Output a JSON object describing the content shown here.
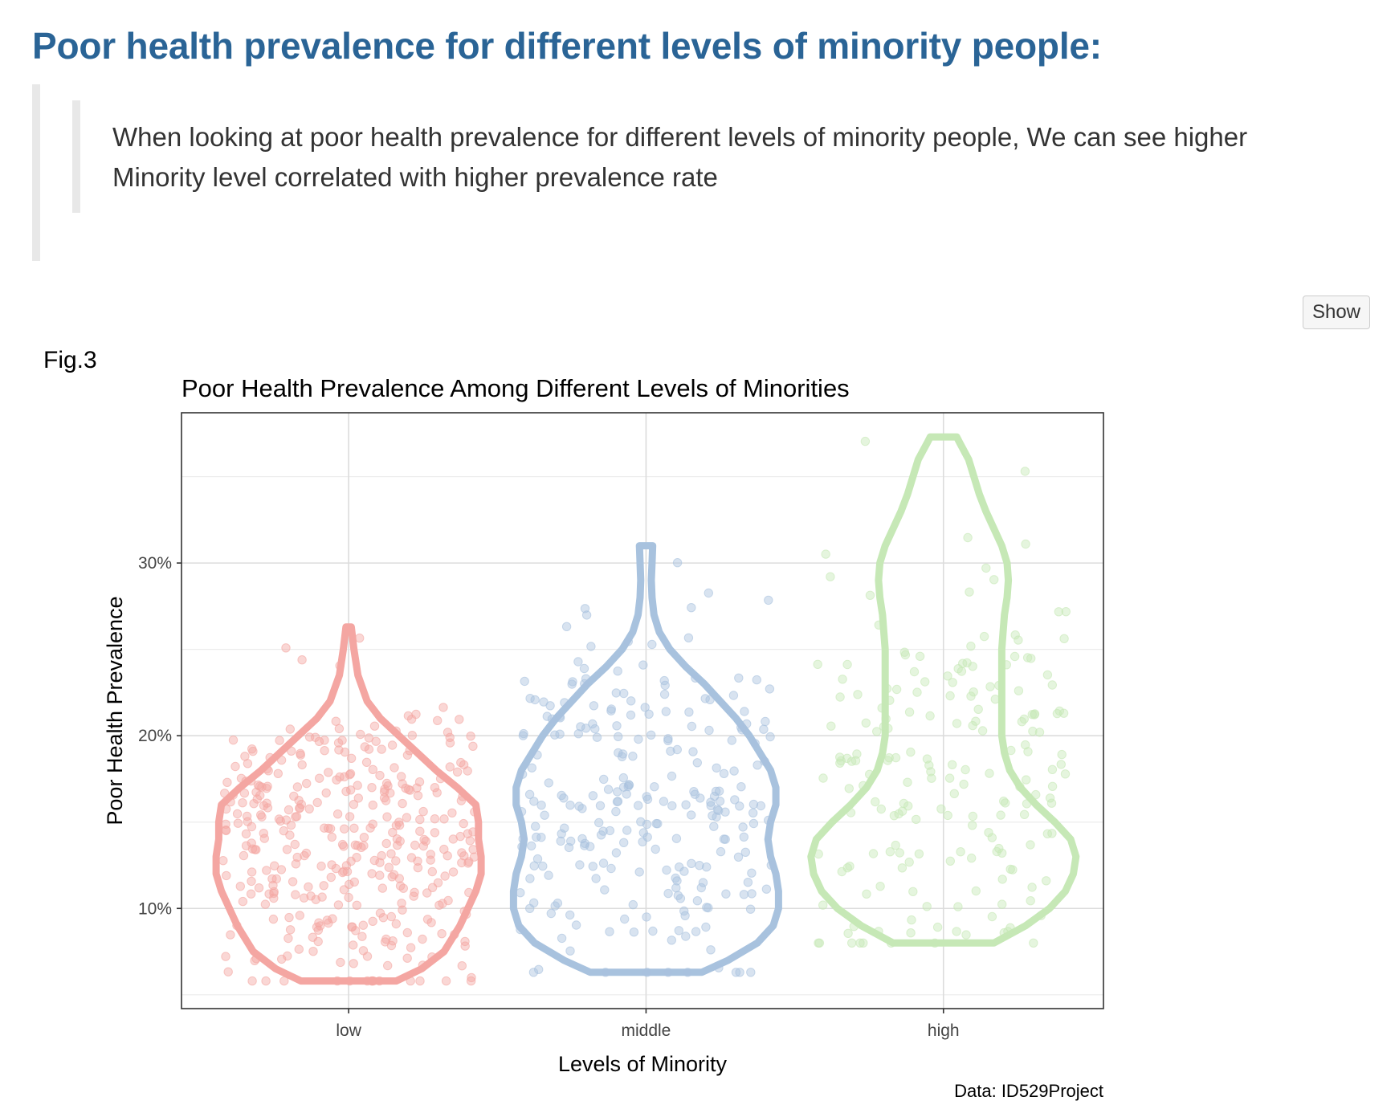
{
  "page": {
    "title": "Poor health prevalence for different levels of minority people:",
    "quote": "When looking at poor health prevalence for different levels of minority people, We can see higher Minority level correlated with higher prevalence rate",
    "show_button": "Show",
    "fig_label": "Fig.3"
  },
  "chart_data": {
    "type": "violin",
    "title": "Poor Health Prevalence Among Different Levels of Minorities",
    "xlabel": "Levels of Minority",
    "ylabel": "Poor Health Prevalence",
    "caption": "Data: ID529Project",
    "categories": [
      "low",
      "middle",
      "high"
    ],
    "y_ticks": [
      0.1,
      0.2,
      0.3
    ],
    "y_tick_labels": [
      "10%",
      "20%",
      "30%"
    ],
    "ylim": [
      0.042,
      0.387
    ],
    "grid": true,
    "legend": "none",
    "colors": {
      "low": "#f4a6a2",
      "middle": "#a8c2de",
      "high": "#c6e8b6"
    },
    "violins": [
      {
        "category": "low",
        "y_min": 0.058,
        "y_max": 0.263,
        "profile": [
          [
            0.058,
            0.36
          ],
          [
            0.065,
            0.55
          ],
          [
            0.075,
            0.72
          ],
          [
            0.09,
            0.84
          ],
          [
            0.1,
            0.9
          ],
          [
            0.11,
            0.96
          ],
          [
            0.12,
            1.0
          ],
          [
            0.13,
            1.0
          ],
          [
            0.14,
            0.98
          ],
          [
            0.15,
            0.98
          ],
          [
            0.16,
            0.96
          ],
          [
            0.17,
            0.82
          ],
          [
            0.18,
            0.66
          ],
          [
            0.19,
            0.52
          ],
          [
            0.2,
            0.38
          ],
          [
            0.21,
            0.24
          ],
          [
            0.22,
            0.14
          ],
          [
            0.235,
            0.07
          ],
          [
            0.25,
            0.04
          ],
          [
            0.263,
            0.02
          ]
        ],
        "points": [
          {
            "n": 370,
            "y_center": 0.14,
            "y_sd": 0.042
          }
        ]
      },
      {
        "category": "middle",
        "y_min": 0.063,
        "y_max": 0.31,
        "profile": [
          [
            0.063,
            0.42
          ],
          [
            0.07,
            0.62
          ],
          [
            0.08,
            0.84
          ],
          [
            0.09,
            0.96
          ],
          [
            0.1,
            1.0
          ],
          [
            0.11,
            1.0
          ],
          [
            0.12,
            0.98
          ],
          [
            0.13,
            0.94
          ],
          [
            0.14,
            0.92
          ],
          [
            0.15,
            0.94
          ],
          [
            0.16,
            0.98
          ],
          [
            0.17,
            0.98
          ],
          [
            0.18,
            0.94
          ],
          [
            0.19,
            0.86
          ],
          [
            0.2,
            0.78
          ],
          [
            0.21,
            0.68
          ],
          [
            0.22,
            0.56
          ],
          [
            0.23,
            0.44
          ],
          [
            0.24,
            0.3
          ],
          [
            0.25,
            0.18
          ],
          [
            0.26,
            0.1
          ],
          [
            0.27,
            0.06
          ],
          [
            0.28,
            0.045
          ],
          [
            0.29,
            0.04
          ],
          [
            0.3,
            0.045
          ],
          [
            0.31,
            0.05
          ]
        ],
        "points": [
          {
            "n": 260,
            "y_center": 0.16,
            "y_sd": 0.052
          }
        ]
      },
      {
        "category": "high",
        "y_min": 0.08,
        "y_max": 0.373,
        "profile": [
          [
            0.08,
            0.38
          ],
          [
            0.09,
            0.62
          ],
          [
            0.1,
            0.8
          ],
          [
            0.11,
            0.92
          ],
          [
            0.12,
            0.98
          ],
          [
            0.13,
            1.0
          ],
          [
            0.14,
            0.96
          ],
          [
            0.15,
            0.84
          ],
          [
            0.16,
            0.7
          ],
          [
            0.17,
            0.58
          ],
          [
            0.18,
            0.5
          ],
          [
            0.19,
            0.46
          ],
          [
            0.2,
            0.44
          ],
          [
            0.21,
            0.44
          ],
          [
            0.22,
            0.44
          ],
          [
            0.23,
            0.44
          ],
          [
            0.24,
            0.44
          ],
          [
            0.25,
            0.44
          ],
          [
            0.26,
            0.45
          ],
          [
            0.27,
            0.46
          ],
          [
            0.28,
            0.48
          ],
          [
            0.29,
            0.49
          ],
          [
            0.3,
            0.48
          ],
          [
            0.31,
            0.44
          ],
          [
            0.32,
            0.38
          ],
          [
            0.33,
            0.32
          ],
          [
            0.34,
            0.27
          ],
          [
            0.35,
            0.23
          ],
          [
            0.36,
            0.19
          ],
          [
            0.37,
            0.12
          ],
          [
            0.373,
            0.1
          ]
        ],
        "points": [
          {
            "n": 190,
            "y_center": 0.175,
            "y_sd": 0.065
          }
        ]
      }
    ]
  }
}
